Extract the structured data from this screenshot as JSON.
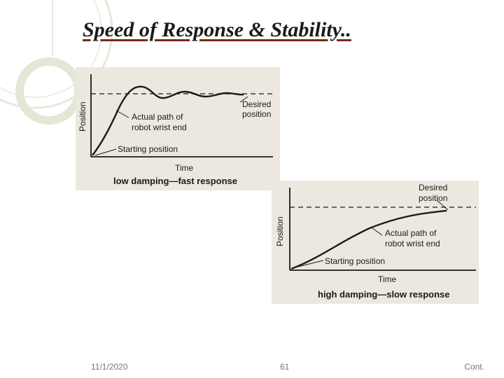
{
  "slide": {
    "title": "Speed of Response & Stability..",
    "footer": {
      "date": "11/1/2020",
      "page": "61",
      "right": "Cont."
    }
  },
  "figure_low": {
    "y_axis_label": "Position",
    "x_axis_label": "Time",
    "desired_label": [
      "Desired",
      "position"
    ],
    "actual_label": [
      "Actual path of",
      "robot wrist end"
    ],
    "start_label": "Starting position",
    "caption": "low damping—fast response"
  },
  "figure_high": {
    "y_axis_label": "Position",
    "x_axis_label": "Time",
    "desired_label": [
      "Desired",
      "position"
    ],
    "actual_label": [
      "Actual path of",
      "robot wrist end"
    ],
    "start_label": "Starting position",
    "caption": "high damping—slow response"
  },
  "colors": {
    "title_underline": "#7a2a12",
    "deco_ring": "#e4e6d6",
    "line": "#1a1a1a"
  }
}
